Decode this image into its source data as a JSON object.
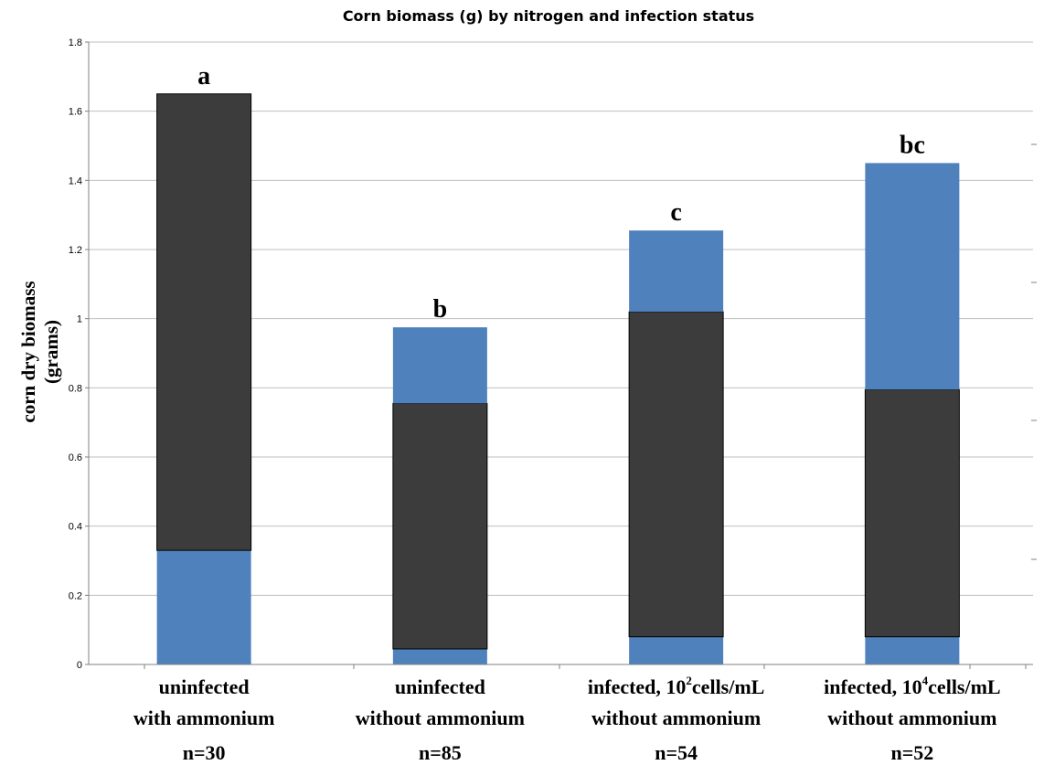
{
  "chart_data": {
    "type": "bar",
    "title": "Corn biomass (g) by nitrogen and infection status",
    "xlabel": "",
    "ylabel": [
      "corn dry biomass",
      "(grams)"
    ],
    "ylim": [
      0,
      1.8
    ],
    "yticks": [
      "0",
      "0.2",
      "0.4",
      "0.6",
      "0.8",
      "1",
      "1.2",
      "1.4",
      "1.6",
      "1.8"
    ],
    "grid": true,
    "legend": "none",
    "colors": {
      "blue": "#4f81bd",
      "dark": "#3c3c3c",
      "grid": "#bfbfbf",
      "axis": "#808080"
    },
    "categories": [
      {
        "lines": [
          {
            "parts": [
              {
                "t": "uninfected"
              }
            ]
          },
          {
            "parts": [
              {
                "t": "with ammonium"
              }
            ]
          }
        ],
        "n": "n=30",
        "letter": "a",
        "segments": [
          {
            "from": 0,
            "to": 0.33,
            "color": "blue"
          },
          {
            "from": 0.33,
            "to": 1.65,
            "color": "dark"
          }
        ]
      },
      {
        "lines": [
          {
            "parts": [
              {
                "t": "uninfected"
              }
            ]
          },
          {
            "parts": [
              {
                "t": "without ammonium"
              }
            ]
          }
        ],
        "n": "n=85",
        "letter": "b",
        "segments": [
          {
            "from": 0,
            "to": 0.045,
            "color": "blue"
          },
          {
            "from": 0.045,
            "to": 0.755,
            "color": "dark"
          },
          {
            "from": 0.755,
            "to": 0.975,
            "color": "blue"
          }
        ]
      },
      {
        "lines": [
          {
            "parts": [
              {
                "t": "infected, 10"
              },
              {
                "t": "2",
                "sup": true
              },
              {
                "t": "cells/mL"
              }
            ]
          },
          {
            "parts": [
              {
                "t": "without ammonium"
              }
            ]
          }
        ],
        "n": "n=54",
        "letter": "c",
        "segments": [
          {
            "from": 0,
            "to": 0.08,
            "color": "blue"
          },
          {
            "from": 0.08,
            "to": 1.02,
            "color": "dark"
          },
          {
            "from": 1.02,
            "to": 1.255,
            "color": "blue"
          }
        ]
      },
      {
        "lines": [
          {
            "parts": [
              {
                "t": "infected, 10"
              },
              {
                "t": "4",
                "sup": true
              },
              {
                "t": "cells/mL"
              }
            ]
          },
          {
            "parts": [
              {
                "t": "without ammonium"
              }
            ]
          }
        ],
        "n": "n=52",
        "letter": "bc",
        "segments": [
          {
            "from": 0,
            "to": 0.08,
            "color": "blue"
          },
          {
            "from": 0.08,
            "to": 0.795,
            "color": "dark"
          },
          {
            "from": 0.795,
            "to": 1.45,
            "color": "blue"
          }
        ]
      }
    ]
  }
}
